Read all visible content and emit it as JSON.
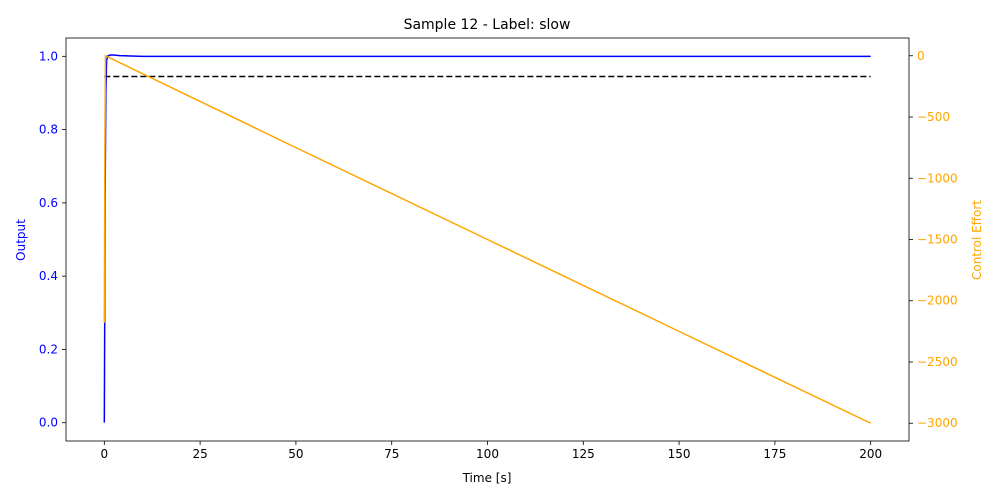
{
  "chart_data": {
    "type": "line",
    "title": "Sample 12 - Label: slow",
    "xlabel": "Time [s]",
    "ylabel_left": "Output",
    "ylabel_right": "Control Effort",
    "xlim": [
      -10,
      210
    ],
    "ylim_left": [
      -0.05,
      1.05
    ],
    "ylim_right": [
      -3145,
      145
    ],
    "x_ticks": [
      0,
      25,
      50,
      75,
      100,
      125,
      150,
      175,
      200
    ],
    "y_left_ticks": [
      0.0,
      0.2,
      0.4,
      0.6,
      0.8,
      1.0
    ],
    "y_left_tick_labels": [
      "0.0",
      "0.2",
      "0.4",
      "0.6",
      "0.8",
      "1.0"
    ],
    "y_right_ticks": [
      0,
      -500,
      -1000,
      -1500,
      -2000,
      -2500,
      -3000
    ],
    "y_right_tick_labels": [
      "0",
      "−500",
      "−1000",
      "−1500",
      "−2000",
      "−2500",
      "−3000"
    ],
    "grid": false,
    "colors": {
      "output": "#0000ff",
      "control": "#ffa500",
      "reference": "#000000",
      "left_axis": "#0000ff",
      "right_axis": "#ffa500"
    },
    "series": [
      {
        "axis": "left",
        "style": "solid",
        "x": [
          0,
          0.1,
          0.2,
          0.4,
          0.6,
          1.0,
          2.0,
          4.0,
          10,
          50,
          100,
          150,
          200
        ],
        "y": [
          0.0,
          0.27,
          0.6,
          0.9,
          0.99,
          1.002,
          1.004,
          1.002,
          1.0,
          1.0,
          1.0,
          1.0,
          1.0
        ]
      },
      {
        "axis": "left",
        "style": "dashed",
        "x": [
          0,
          200
        ],
        "y": [
          0.945,
          0.945
        ]
      },
      {
        "axis": "right",
        "style": "solid",
        "x": [
          0,
          0.15,
          0.3,
          50,
          100,
          150,
          200
        ],
        "y": [
          -2180,
          -800,
          0,
          -750,
          -1500,
          -2250,
          -3000
        ]
      }
    ]
  }
}
